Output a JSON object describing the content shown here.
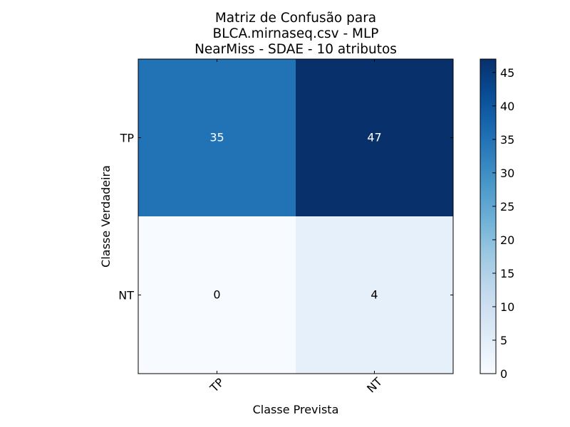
{
  "chart_data": {
    "type": "heatmap",
    "title_lines": [
      "Matriz de Confusão para",
      "BLCA.mirnaseq.csv - MLP",
      "NearMiss - SDAE - 10 atributos"
    ],
    "xlabel": "Classe Prevista",
    "ylabel": "Classe Verdadeira",
    "x_categories": [
      "TP",
      "NT"
    ],
    "y_categories": [
      "TP",
      "NT"
    ],
    "matrix": [
      [
        35,
        47
      ],
      [
        0,
        4
      ]
    ],
    "colormap": "Blues",
    "colorbar": {
      "min": 0,
      "max": 47,
      "ticks": [
        0,
        5,
        10,
        15,
        20,
        25,
        30,
        35,
        40,
        45
      ]
    },
    "cell_text_colors": {
      "dark": "#ffffff",
      "light": "#000000"
    }
  }
}
